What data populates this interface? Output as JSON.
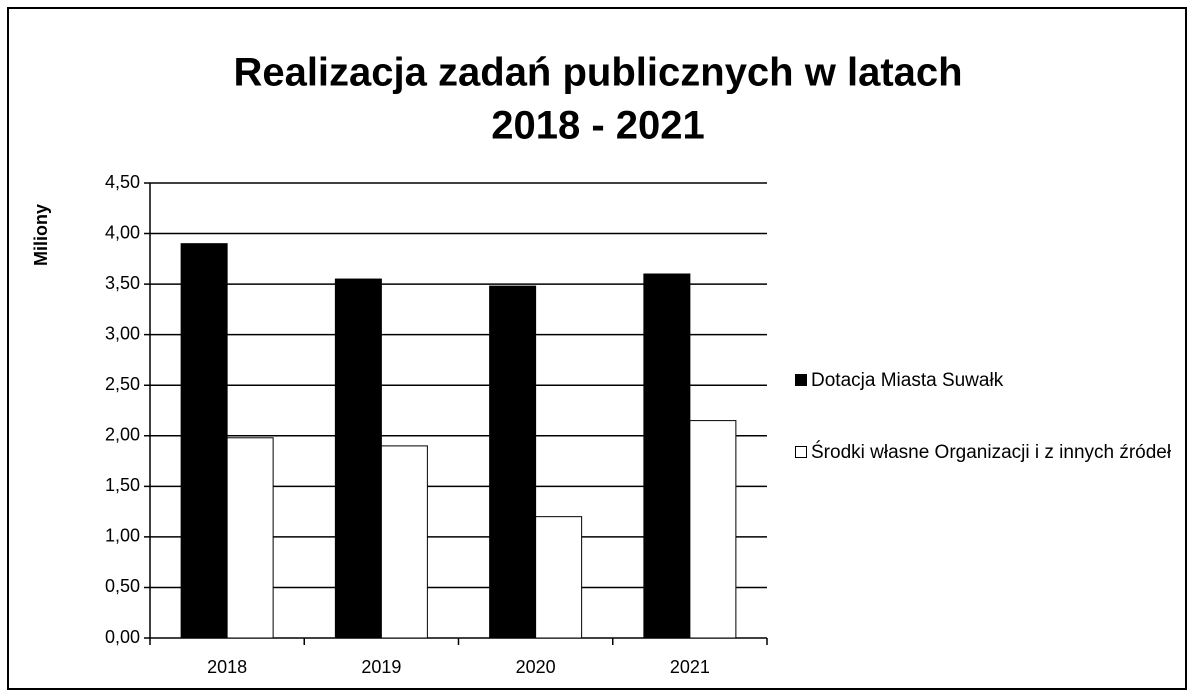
{
  "chart_data": {
    "type": "bar",
    "title": [
      "Realizacja zadań publicznych w latach",
      "2018 - 2021"
    ],
    "ylabel": "Miliony",
    "categories": [
      "2018",
      "2019",
      "2020",
      "2021"
    ],
    "series": [
      {
        "name": "Dotacja Miasta Suwałk",
        "color": "#000000",
        "values": [
          3.9,
          3.55,
          3.48,
          3.6
        ]
      },
      {
        "name": "Środki własne Organizacji i z innych źródeł",
        "color": "#ffffff",
        "values": [
          1.98,
          1.9,
          1.2,
          2.15
        ]
      }
    ],
    "ylim": [
      0,
      4.5
    ],
    "yticks": [
      {
        "value": 0,
        "label": "0,00"
      },
      {
        "value": 0.5,
        "label": "0,50"
      },
      {
        "value": 1,
        "label": "1,00"
      },
      {
        "value": 1.5,
        "label": "1,50"
      },
      {
        "value": 2,
        "label": "2,00"
      },
      {
        "value": 2.5,
        "label": "2,50"
      },
      {
        "value": 3,
        "label": "3,00"
      },
      {
        "value": 3.5,
        "label": "3,50"
      },
      {
        "value": 4,
        "label": "4,00"
      },
      {
        "value": 4.5,
        "label": "4,50"
      }
    ],
    "grid": true,
    "legend": "right"
  }
}
